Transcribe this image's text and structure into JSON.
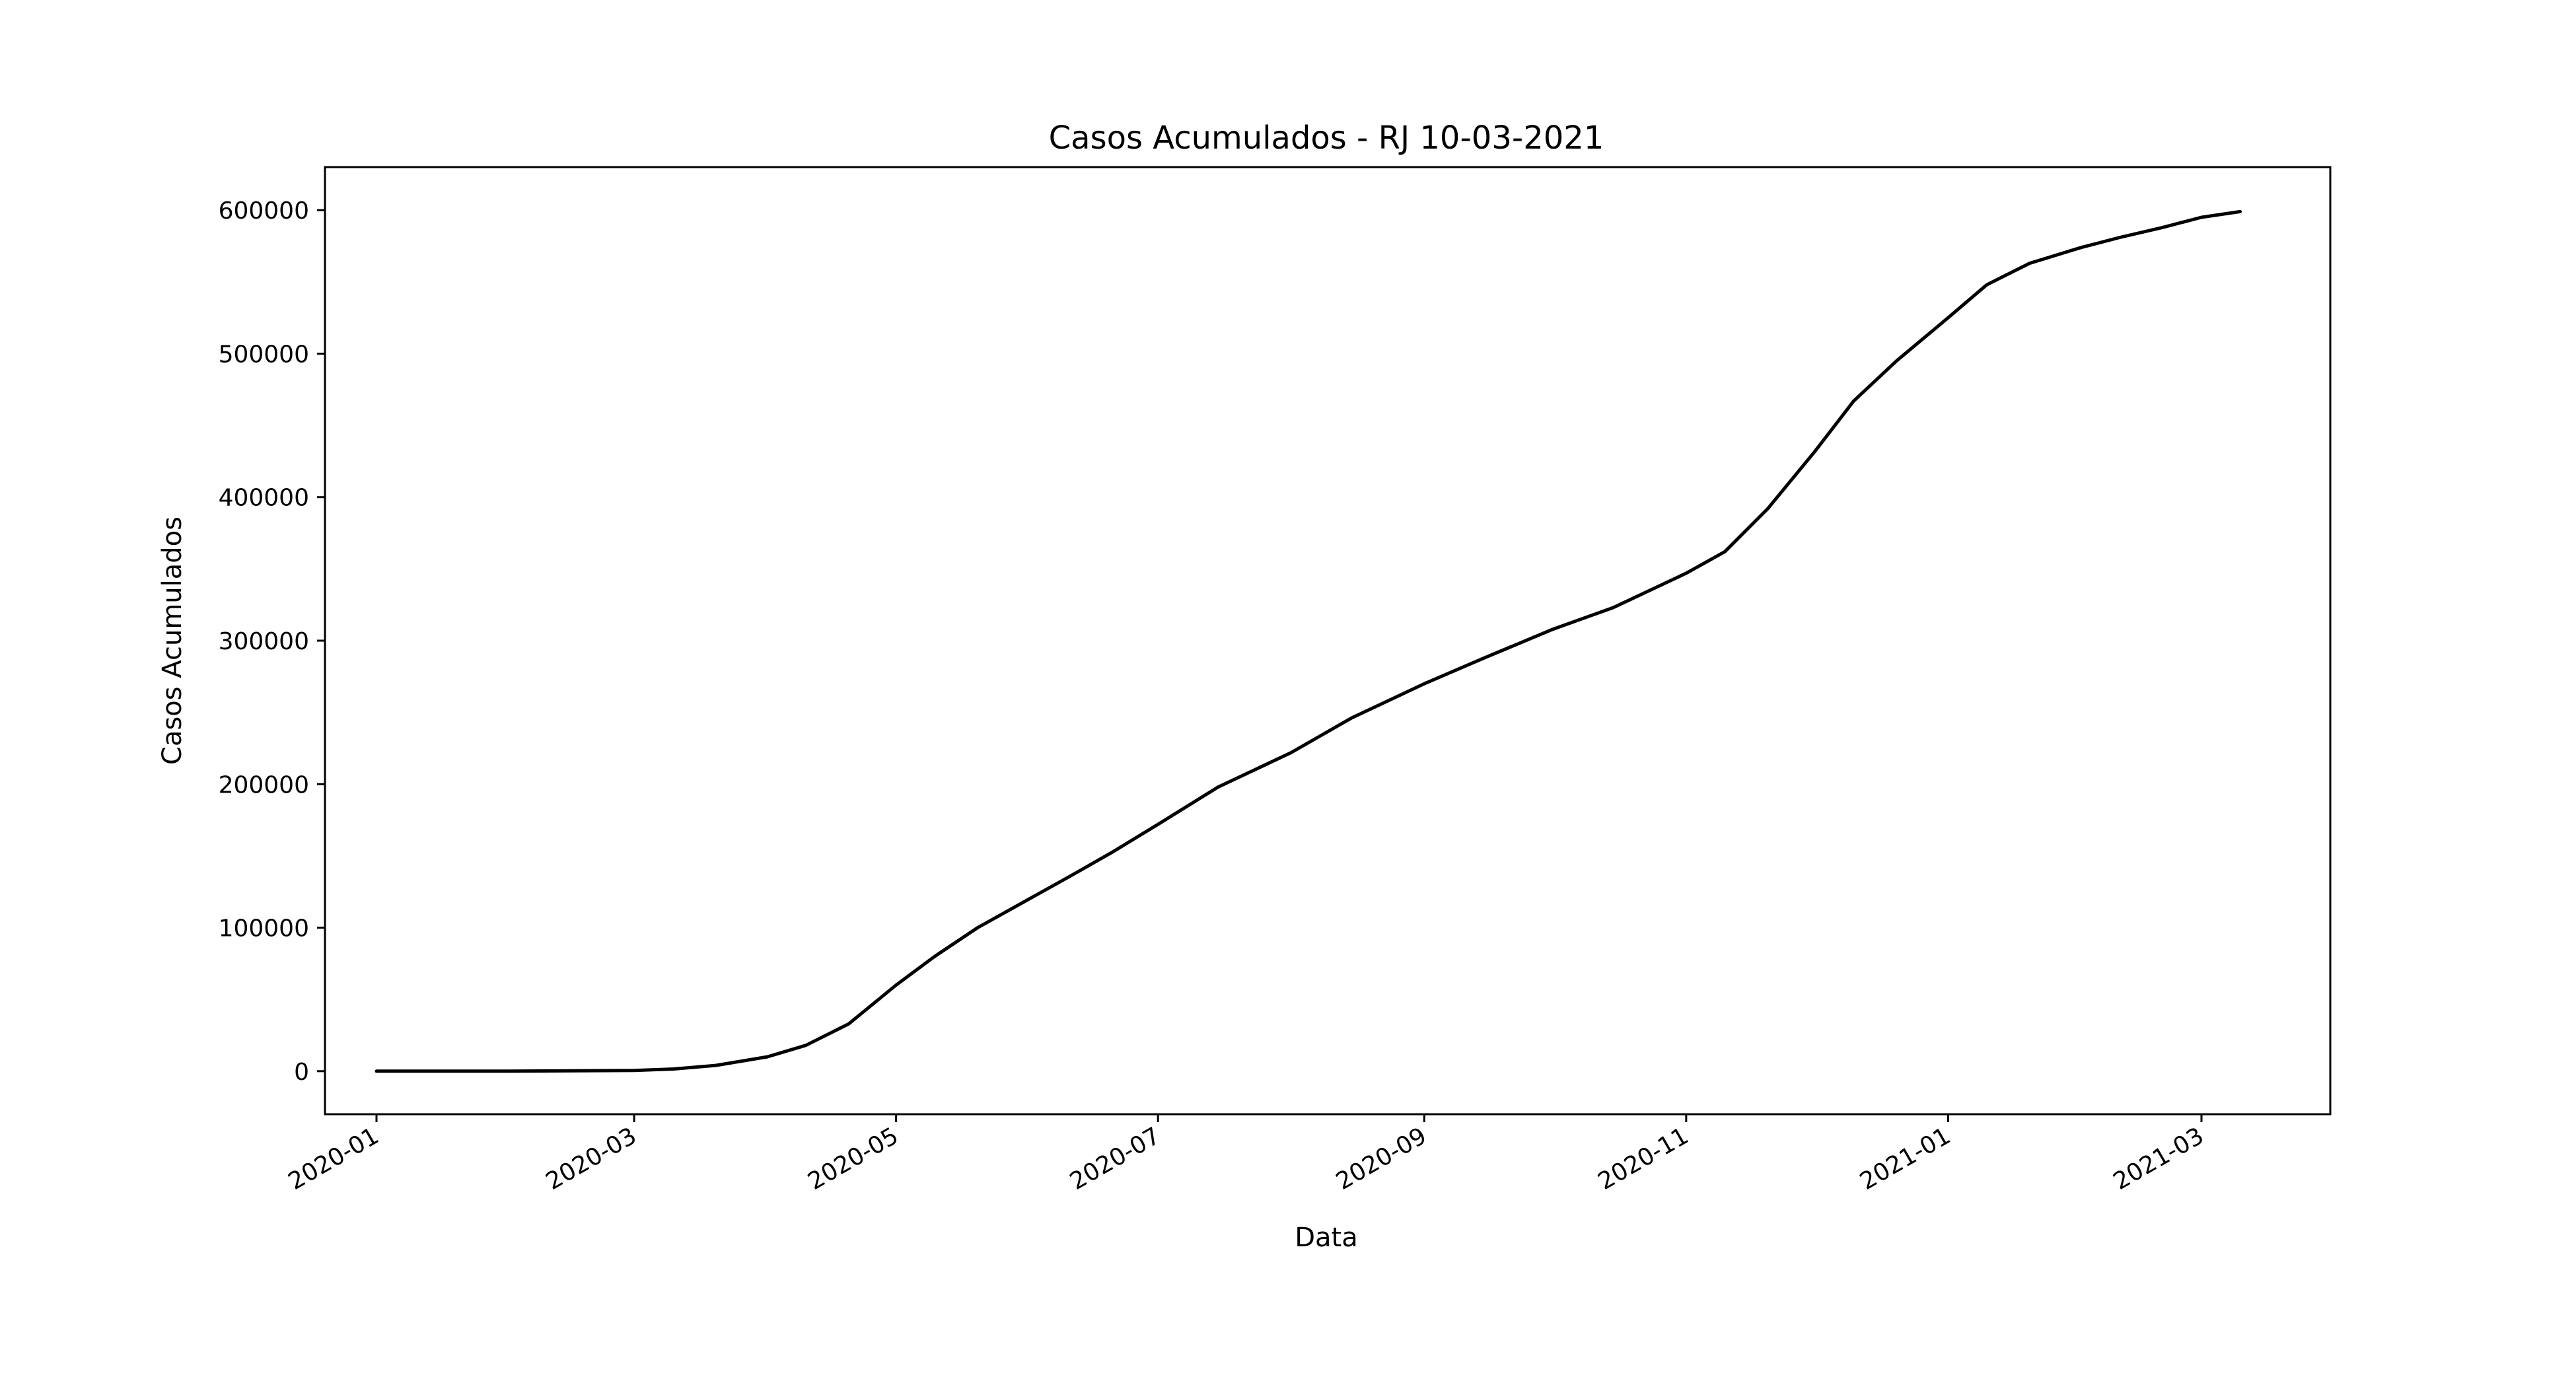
{
  "chart_data": {
    "type": "line",
    "title": "Casos Acumulados - RJ 10-03-2021",
    "xlabel": "Data",
    "ylabel": "Casos Acumulados",
    "xlim": [
      "2019-12-20",
      "2021-03-31"
    ],
    "ylim": [
      -30000,
      630000
    ],
    "grid": false,
    "legend": "none",
    "line_color": "#000000",
    "x_ticks": [
      {
        "date": "2020-01-01",
        "label": "2020-01"
      },
      {
        "date": "2020-03-01",
        "label": "2020-03"
      },
      {
        "date": "2020-05-01",
        "label": "2020-05"
      },
      {
        "date": "2020-07-01",
        "label": "2020-07"
      },
      {
        "date": "2020-09-01",
        "label": "2020-09"
      },
      {
        "date": "2020-11-01",
        "label": "2020-11"
      },
      {
        "date": "2021-01-01",
        "label": "2021-01"
      },
      {
        "date": "2021-03-01",
        "label": "2021-03"
      }
    ],
    "y_ticks": [
      {
        "value": 0,
        "label": "0"
      },
      {
        "value": 100000,
        "label": "100000"
      },
      {
        "value": 200000,
        "label": "200000"
      },
      {
        "value": 300000,
        "label": "300000"
      },
      {
        "value": 400000,
        "label": "400000"
      },
      {
        "value": 500000,
        "label": "500000"
      },
      {
        "value": 600000,
        "label": "600000"
      }
    ],
    "series": [
      {
        "x": [
          "2020-01-01",
          "2020-02-01",
          "2020-03-01",
          "2020-03-10",
          "2020-03-20",
          "2020-04-01",
          "2020-04-10",
          "2020-04-20",
          "2020-05-01",
          "2020-05-10",
          "2020-05-20",
          "2020-06-01",
          "2020-06-10",
          "2020-06-20",
          "2020-07-01",
          "2020-07-15",
          "2020-08-01",
          "2020-08-15",
          "2020-09-01",
          "2020-09-15",
          "2020-10-01",
          "2020-10-15",
          "2020-11-01",
          "2020-11-10",
          "2020-11-20",
          "2020-12-01",
          "2020-12-10",
          "2020-12-20",
          "2021-01-01",
          "2021-01-10",
          "2021-01-20",
          "2021-02-01",
          "2021-02-10",
          "2021-02-20",
          "2021-03-01",
          "2021-03-10"
        ],
        "y": [
          0,
          0,
          500,
          1500,
          4000,
          10000,
          18000,
          33000,
          60000,
          80000,
          100000,
          120000,
          135000,
          152000,
          172000,
          198000,
          222000,
          246000,
          270000,
          288000,
          308000,
          323000,
          347000,
          362000,
          392000,
          432000,
          467000,
          495000,
          525000,
          548000,
          563000,
          574000,
          581000,
          588000,
          595000,
          599000
        ]
      }
    ]
  }
}
